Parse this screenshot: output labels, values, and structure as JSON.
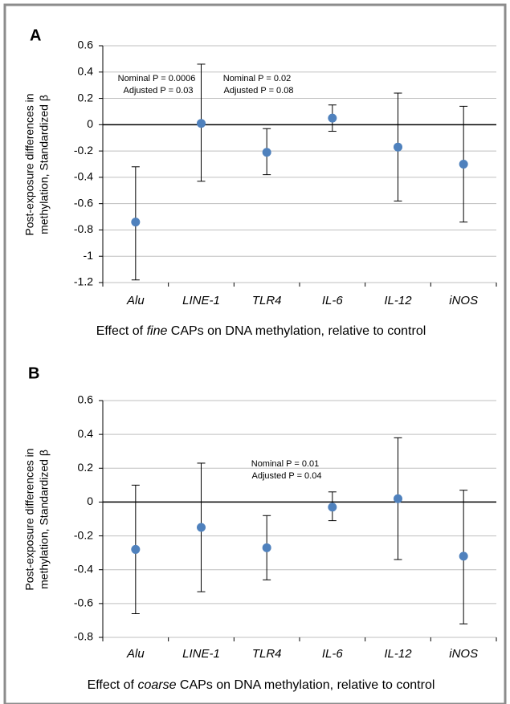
{
  "chart_data": [
    {
      "type": "dot-errorbar",
      "panel": "A",
      "ylabel": [
        "Post-exposure differences in",
        "methylation, Standardized β"
      ],
      "xlabel": [
        "Effect of ",
        "fine",
        " CAPs on DNA methylation, relative to control"
      ],
      "categories": [
        "Alu",
        "LINE-1",
        "TLR4",
        "IL-6",
        "IL-12",
        "iNOS"
      ],
      "values": [
        -0.74,
        0.01,
        -0.21,
        0.05,
        -0.17,
        -0.3
      ],
      "lower": [
        -1.18,
        -0.43,
        -0.38,
        -0.05,
        -0.58,
        -0.74
      ],
      "upper": [
        -0.32,
        0.46,
        -0.03,
        0.15,
        0.24,
        0.14
      ],
      "color": "#4f81bd",
      "annotations": [
        [
          "Nominal P = 0.0006",
          "Adjusted P = 0.03"
        ],
        [
          "Nominal P = 0.02",
          "Adjusted P = 0.08"
        ]
      ],
      "ylim": [
        -1.2,
        0.6
      ],
      "yticks": [
        0.6,
        0.4,
        0.2,
        0,
        -0.2,
        -0.4,
        -0.6,
        -0.8,
        -1,
        -1.2
      ],
      "grid": true
    },
    {
      "type": "dot-errorbar",
      "panel": "B",
      "ylabel": [
        "Post-exposure differences in",
        "methylation, Standardized β"
      ],
      "xlabel": [
        "Effect of ",
        "coarse",
        " CAPs on DNA methylation, relative to control"
      ],
      "categories": [
        "Alu",
        "LINE-1",
        "TLR4",
        "IL-6",
        "IL-12",
        "iNOS"
      ],
      "values": [
        -0.28,
        -0.15,
        -0.27,
        -0.03,
        0.02,
        -0.32
      ],
      "lower": [
        -0.66,
        -0.53,
        -0.46,
        -0.11,
        -0.34,
        -0.72
      ],
      "upper": [
        0.1,
        0.23,
        -0.08,
        0.06,
        0.38,
        0.07
      ],
      "color": "#4f81bd",
      "annotations": [
        [
          "Nominal P = 0.01",
          "Adjusted P = 0.04"
        ]
      ],
      "ylim": [
        -0.8,
        0.6
      ],
      "yticks": [
        0.6,
        0.4,
        0.2,
        0,
        -0.2,
        -0.4,
        -0.6,
        -0.8
      ],
      "grid": true
    }
  ]
}
